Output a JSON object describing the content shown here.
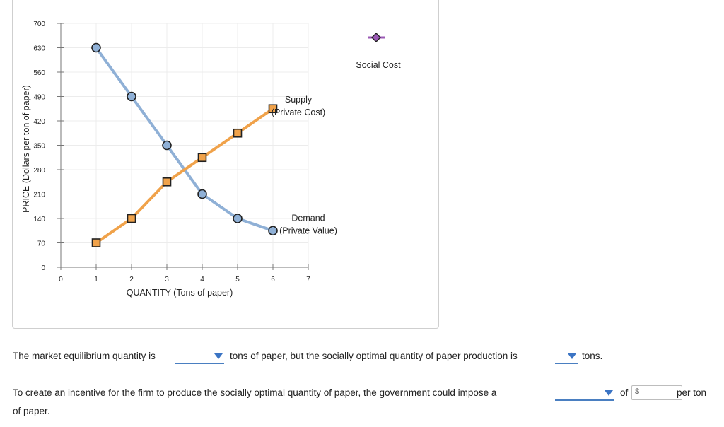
{
  "chart_data": {
    "type": "line",
    "xlabel": "QUANTITY (Tons of paper)",
    "ylabel": "PRICE (Dollars per ton of paper)",
    "xlim": [
      0,
      7
    ],
    "ylim": [
      0,
      700
    ],
    "x_ticks": [
      0,
      1,
      2,
      3,
      4,
      5,
      6,
      7
    ],
    "y_ticks": [
      0,
      70,
      140,
      210,
      280,
      350,
      420,
      490,
      560,
      630,
      700
    ],
    "grid": true,
    "series": [
      {
        "name": "Demand (Private Value)",
        "label_lines": [
          "Demand",
          "(Private Value)"
        ],
        "color": "#8fb0d6",
        "marker": "circle",
        "x": [
          1,
          2,
          3,
          4,
          5,
          6
        ],
        "y": [
          630,
          490,
          350,
          210,
          140,
          105
        ]
      },
      {
        "name": "Supply (Private Cost)",
        "label_lines": [
          "Supply",
          "(Private Cost)"
        ],
        "color": "#f0a24a",
        "marker": "square",
        "x": [
          1,
          2,
          3,
          4,
          5,
          6
        ],
        "y": [
          70,
          140,
          245,
          315,
          385,
          455
        ]
      }
    ],
    "palette_tool": {
      "name": "Social Cost",
      "color": "#9b59b6",
      "marker": "diamond"
    }
  },
  "questions": {
    "q1_part1": "The market equilibrium quantity is",
    "q1_part2": "tons of paper, but the socially optimal quantity of paper production is",
    "q1_part3": "tons.",
    "q2_part1": "To create an incentive for the firm to produce the socially optimal quantity of paper, the government could impose a",
    "q2_part2": "of",
    "q2_currency": "$",
    "q2_part3": "per ton",
    "q2_part4": "of paper."
  }
}
